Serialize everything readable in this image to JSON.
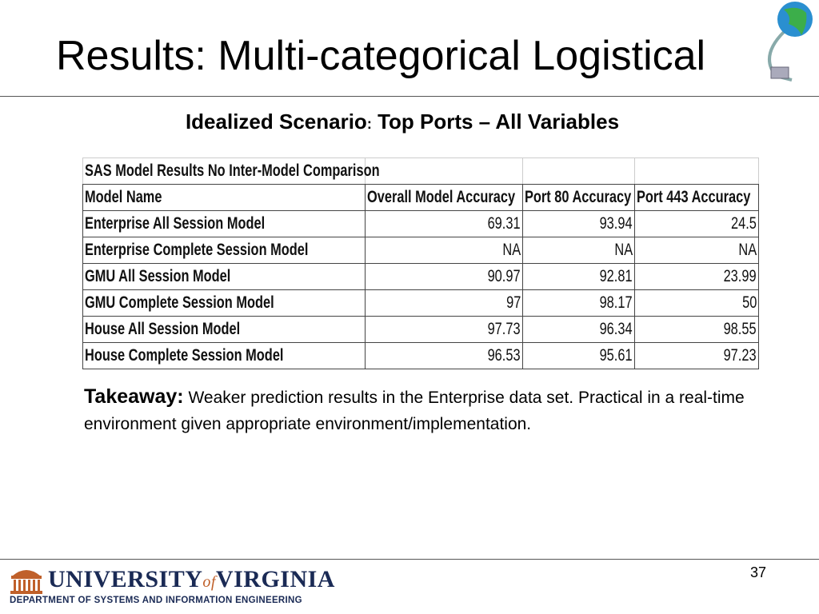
{
  "title": "Results: Multi-categorical Logistical",
  "subtitle": {
    "lead": "Idealized Scenario",
    "separator": ":",
    "rest": "Top Ports – All Variables"
  },
  "table": {
    "caption": "SAS Model Results No Inter-Model Comparison",
    "header": [
      "Model Name",
      "Overall Model Accuracy",
      "Port 80 Accuracy",
      "Port 443  Accuracy"
    ],
    "rows": [
      [
        "Enterprise All Session Model",
        "69.31",
        "93.94",
        "24.5"
      ],
      [
        "Enterprise Complete Session Model",
        "NA",
        "NA",
        "NA"
      ],
      [
        "GMU All Session Model",
        "90.97",
        "92.81",
        "23.99"
      ],
      [
        "GMU Complete Session Model",
        "97",
        "98.17",
        "50"
      ],
      [
        "House All Session Model",
        "97.73",
        "96.34",
        "98.55"
      ],
      [
        "House Complete Session Model",
        "96.53",
        "95.61",
        "97.23"
      ]
    ]
  },
  "takeaway": {
    "label": "Takeaway:",
    "text": "Weaker prediction results in the Enterprise data set. Practical in a real-time environment given appropriate environment/implementation."
  },
  "page_number": "37",
  "footer": {
    "university": "UNIVERSITY",
    "of": "of",
    "virginia": "VIRGINIA",
    "department": "DEPARTMENT OF SYSTEMS AND INFORMATION ENGINEERING"
  }
}
